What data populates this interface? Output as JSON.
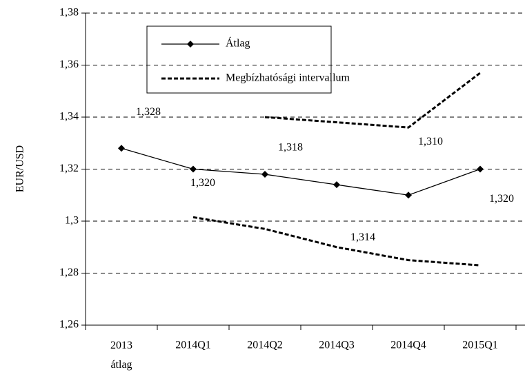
{
  "chart_data": {
    "type": "line",
    "y_label": "EUR/USD",
    "categories": [
      "2013 átlag",
      "2014Q1",
      "2014Q2",
      "2014Q3",
      "2014Q4",
      "2015Q1"
    ],
    "series": [
      {
        "name": "Átlag",
        "color": "#000000",
        "values": [
          1.328,
          1.32,
          1.318,
          1.314,
          1.31,
          1.32
        ],
        "value_labels": [
          "1,328",
          "1,320",
          "1,318",
          "1,314",
          "1,310",
          "1,320"
        ]
      },
      {
        "name": "Megbízhatósági intervallum",
        "color": "#000000",
        "values": [
          null,
          null,
          1.34,
          1.338,
          1.336,
          1.357
        ],
        "lower": [
          null,
          1.3015,
          1.297,
          1.29,
          1.285,
          1.283
        ]
      }
    ],
    "ylim": [
      1.26,
      1.38
    ],
    "yticks": [
      {
        "value": 1.26,
        "label": "1,26"
      },
      {
        "value": 1.28,
        "label": "1,28"
      },
      {
        "value": 1.3,
        "label": "1,3"
      },
      {
        "value": 1.32,
        "label": "1,32"
      },
      {
        "value": 1.34,
        "label": "1,34"
      },
      {
        "value": 1.36,
        "label": "1,36"
      },
      {
        "value": 1.38,
        "label": "1,38"
      }
    ],
    "grid": true
  }
}
